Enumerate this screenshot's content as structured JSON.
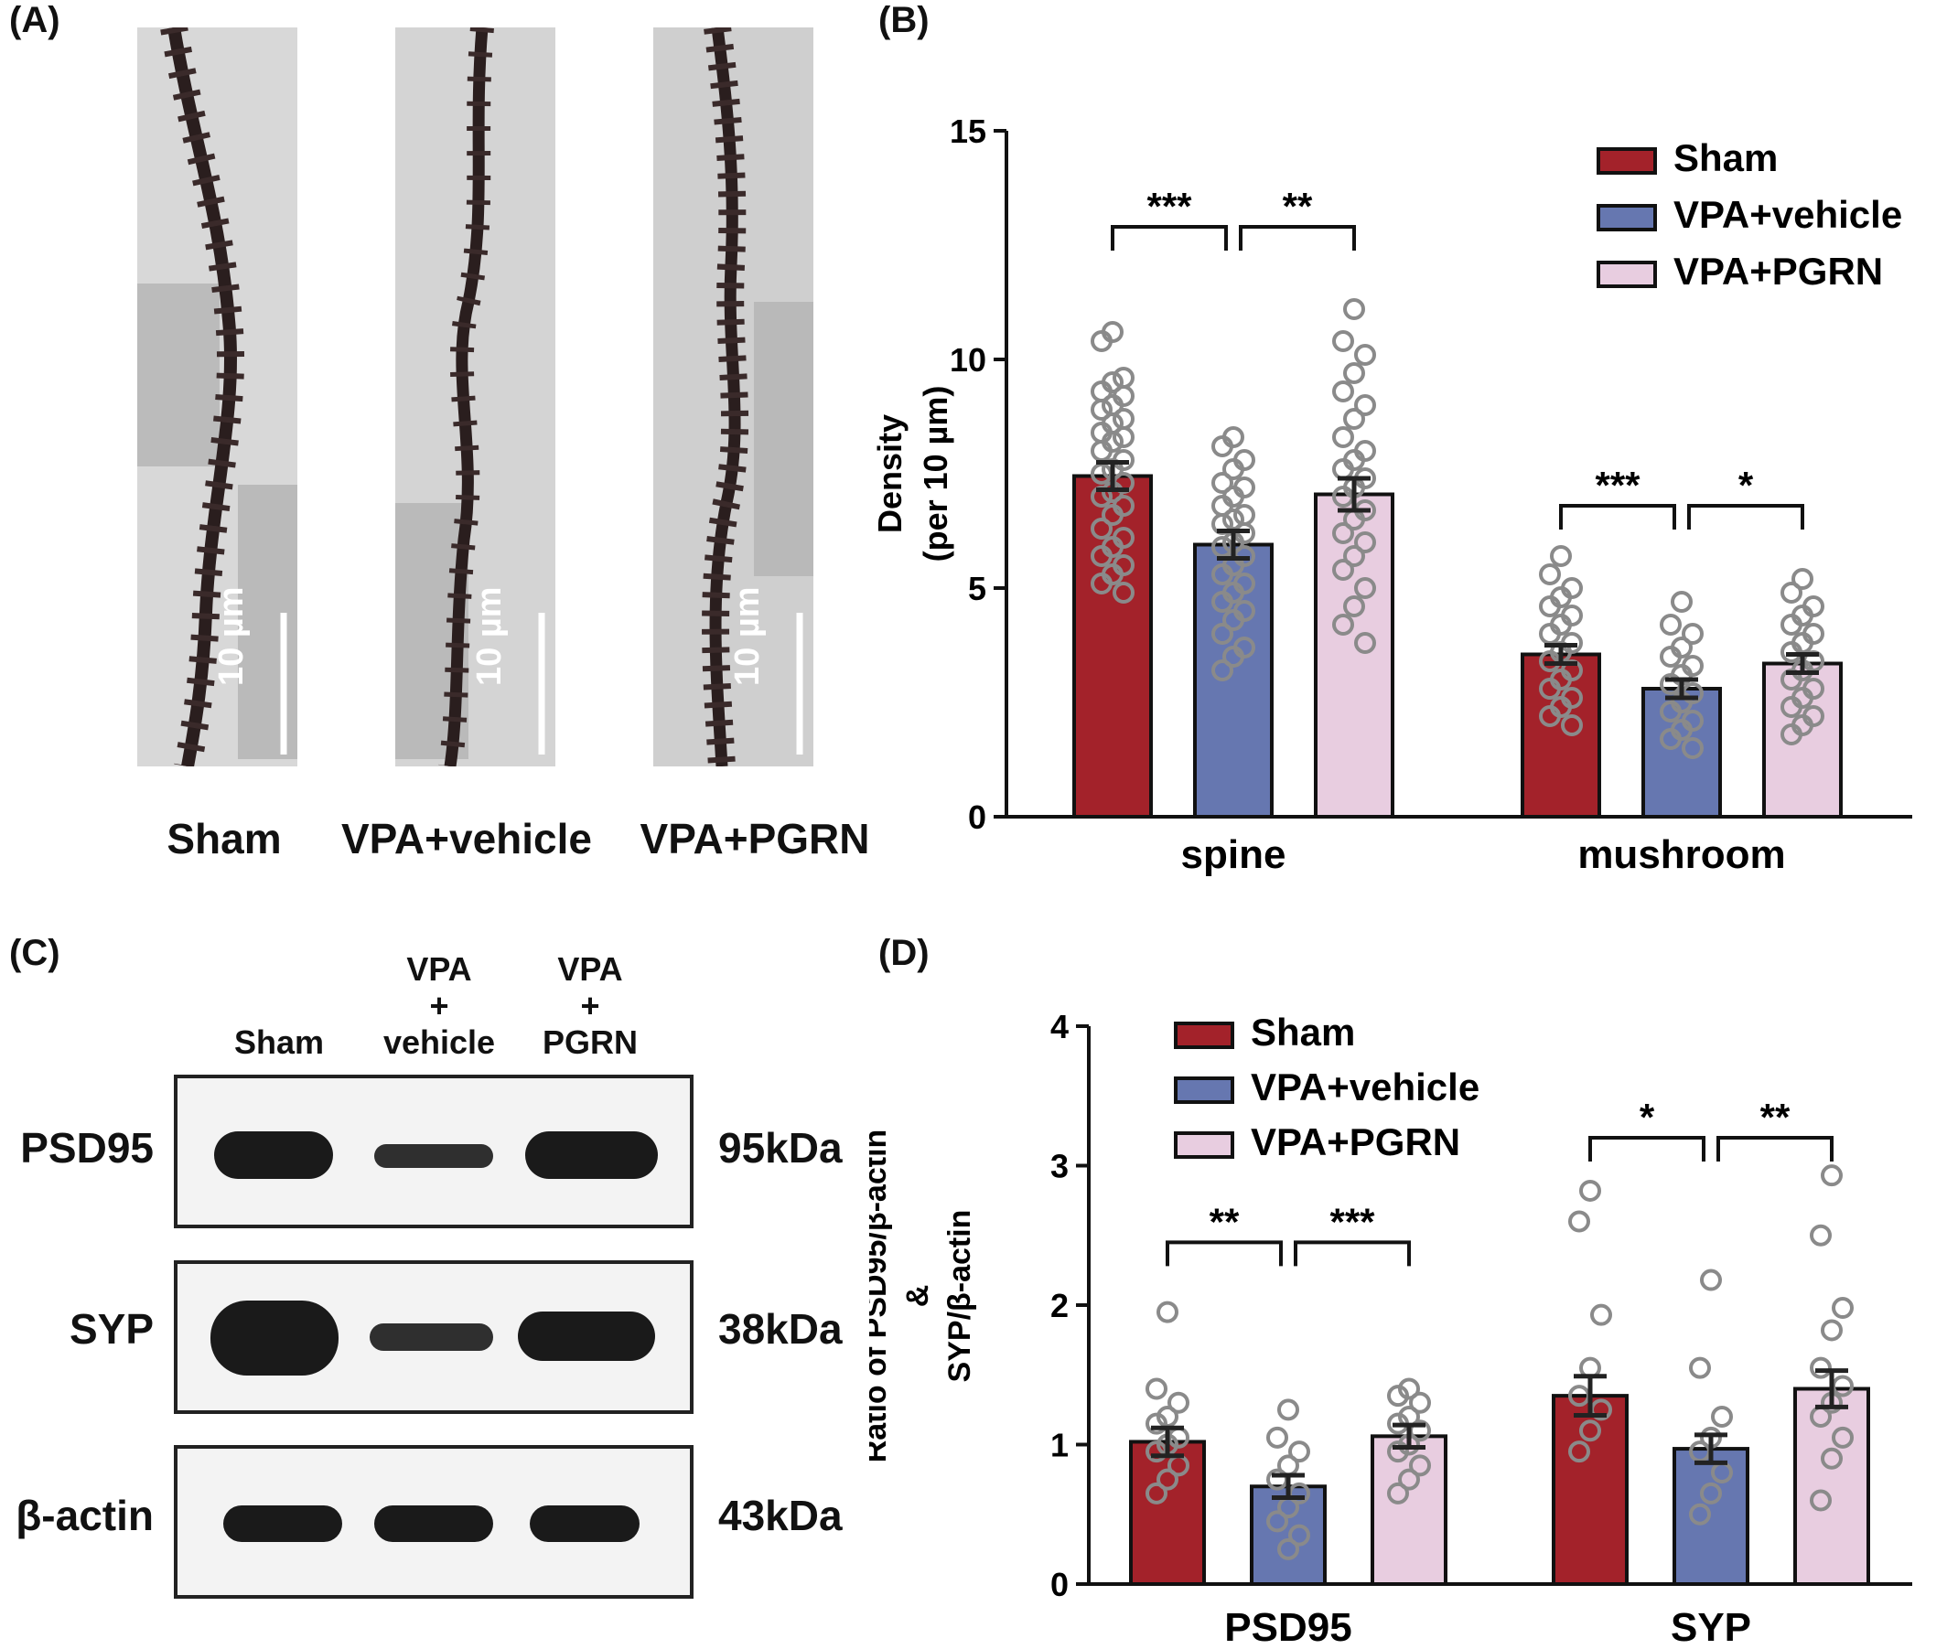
{
  "panels": {
    "a": "(A)",
    "b": "(B)",
    "c": "(C)",
    "d": "(D)"
  },
  "micrographs": {
    "scale_bar": "10 µm",
    "captions": [
      "Sham",
      "VPA+vehicle",
      "VPA+PGRN"
    ]
  },
  "blot": {
    "columns": [
      {
        "l1": "",
        "l2": "",
        "l3": "Sham"
      },
      {
        "l1": "VPA",
        "l2": "+",
        "l3": "vehicle"
      },
      {
        "l1": "VPA",
        "l2": "+",
        "l3": "PGRN"
      }
    ],
    "rows": [
      {
        "name": "PSD95",
        "kda": "95kDa"
      },
      {
        "name": "SYP",
        "kda": "38kDa"
      },
      {
        "name": "β-actin",
        "kda": "43kDa"
      }
    ],
    "intensity": [
      [
        1.0,
        0.45,
        1.0
      ],
      [
        1.0,
        0.55,
        0.9
      ],
      [
        0.9,
        0.9,
        0.85
      ]
    ]
  },
  "colors": {
    "Sham": "#a3222a",
    "VPA+vehicle": "#6677b0",
    "VPA+PGRN": "#e8cde0",
    "dots": "#8a8a8a"
  },
  "chart_data": [
    {
      "type": "bar",
      "panel": "B",
      "ylabel_lines": [
        "Density",
        "(per 10 µm)"
      ],
      "ylim": [
        0,
        15
      ],
      "yticks": [
        0,
        5,
        10,
        15
      ],
      "categories": [
        "spine",
        "mushroom"
      ],
      "series": [
        {
          "name": "Sham",
          "values": [
            7.45,
            3.55
          ],
          "errors": [
            0.3,
            0.2
          ]
        },
        {
          "name": "VPA+vehicle",
          "values": [
            5.95,
            2.8
          ],
          "errors": [
            0.3,
            0.2
          ]
        },
        {
          "name": "VPA+PGRN",
          "values": [
            7.05,
            3.35
          ],
          "errors": [
            0.35,
            0.2
          ]
        }
      ],
      "points": [
        [
          [
            10.6,
            10.4,
            9.6,
            9.5,
            9.3,
            9.2,
            9.0,
            8.9,
            8.7,
            8.6,
            8.4,
            8.3,
            8.2,
            8.0,
            7.8,
            7.6,
            7.5,
            7.3,
            7.1,
            7.0,
            6.8,
            6.6,
            6.3,
            6.1,
            5.9,
            5.7,
            5.5,
            5.3,
            5.1,
            4.9
          ],
          [
            8.3,
            8.1,
            7.8,
            7.6,
            7.3,
            7.2,
            7.0,
            6.8,
            6.6,
            6.5,
            6.4,
            6.2,
            6.0,
            5.9,
            5.7,
            5.5,
            5.3,
            5.1,
            4.9,
            4.7,
            4.5,
            4.3,
            4.0,
            3.7,
            3.5,
            3.2
          ],
          [
            11.1,
            10.4,
            10.1,
            9.7,
            9.3,
            9.0,
            8.7,
            8.3,
            8.0,
            7.8,
            7.6,
            7.4,
            7.2,
            7.0,
            6.7,
            6.5,
            6.2,
            6.0,
            5.7,
            5.4,
            5.0,
            4.6,
            4.2,
            3.8
          ]
        ],
        [
          [
            5.7,
            5.3,
            5.0,
            4.8,
            4.6,
            4.4,
            4.2,
            4.0,
            3.8,
            3.6,
            3.4,
            3.2,
            3.0,
            2.8,
            2.6,
            2.4,
            2.2,
            2.0
          ],
          [
            4.7,
            4.2,
            4.0,
            3.7,
            3.5,
            3.3,
            3.1,
            2.9,
            2.7,
            2.5,
            2.3,
            2.1,
            1.9,
            1.7,
            1.5
          ],
          [
            5.2,
            4.9,
            4.6,
            4.4,
            4.2,
            4.0,
            3.8,
            3.6,
            3.4,
            3.2,
            3.0,
            2.8,
            2.6,
            2.4,
            2.2,
            2.0,
            1.8
          ]
        ]
      ],
      "significance": [
        {
          "category": 0,
          "from": 0,
          "to": 1,
          "label": "***",
          "level": 12.9
        },
        {
          "category": 0,
          "from": 1,
          "to": 2,
          "label": "**",
          "level": 12.9
        },
        {
          "category": 1,
          "from": 0,
          "to": 1,
          "label": "***",
          "level": 6.8
        },
        {
          "category": 1,
          "from": 1,
          "to": 2,
          "label": "*",
          "level": 6.8
        }
      ],
      "legend": [
        "Sham",
        "VPA+vehicle",
        "VPA+PGRN"
      ],
      "legend_position": "top-right"
    },
    {
      "type": "bar",
      "panel": "D",
      "ylabel_lines": [
        "Ratio of PSD95/β-actin",
        "&",
        "SYP/β-actin"
      ],
      "ylim": [
        0,
        4
      ],
      "yticks": [
        0,
        1,
        2,
        3,
        4
      ],
      "categories": [
        "PSD95",
        "SYP"
      ],
      "series": [
        {
          "name": "Sham",
          "values": [
            1.02,
            1.35
          ],
          "errors": [
            0.1,
            0.14
          ]
        },
        {
          "name": "VPA+vehicle",
          "values": [
            0.7,
            0.97
          ],
          "errors": [
            0.08,
            0.1
          ]
        },
        {
          "name": "VPA+PGRN",
          "values": [
            1.06,
            1.4
          ],
          "errors": [
            0.08,
            0.13
          ]
        }
      ],
      "points": [
        [
          [
            1.95,
            1.4,
            1.3,
            1.2,
            1.15,
            1.05,
            1.0,
            0.95,
            0.85,
            0.75,
            0.65
          ],
          [
            1.25,
            1.05,
            0.95,
            0.85,
            0.75,
            0.65,
            0.55,
            0.45,
            0.35,
            0.25
          ],
          [
            1.4,
            1.35,
            1.3,
            1.2,
            1.15,
            1.1,
            1.0,
            0.95,
            0.85,
            0.75,
            0.65
          ]
        ],
        [
          [
            2.82,
            2.6,
            1.93,
            1.55,
            1.35,
            1.25,
            1.1,
            0.95
          ],
          [
            2.18,
            1.55,
            1.2,
            1.05,
            0.95,
            0.8,
            0.65,
            0.5
          ],
          [
            2.93,
            2.5,
            1.98,
            1.82,
            1.55,
            1.42,
            1.3,
            1.2,
            1.05,
            0.9,
            0.6
          ]
        ]
      ],
      "significance": [
        {
          "category": 0,
          "from": 0,
          "to": 1,
          "label": "**",
          "level": 2.45
        },
        {
          "category": 0,
          "from": 1,
          "to": 2,
          "label": "***",
          "level": 2.45
        },
        {
          "category": 1,
          "from": 0,
          "to": 1,
          "label": "*",
          "level": 3.2
        },
        {
          "category": 1,
          "from": 1,
          "to": 2,
          "label": "**",
          "level": 3.2
        }
      ],
      "legend": [
        "Sham",
        "VPA+vehicle",
        "VPA+PGRN"
      ],
      "legend_position": "top-left"
    }
  ]
}
